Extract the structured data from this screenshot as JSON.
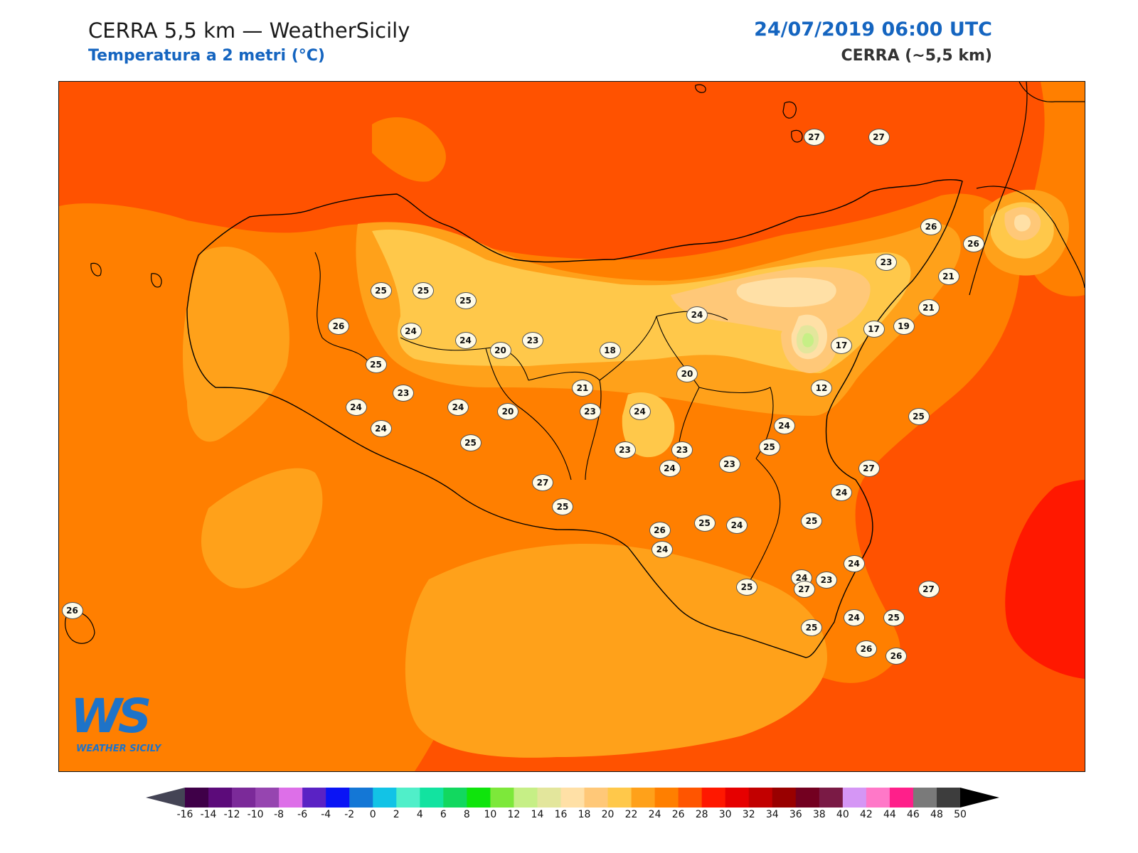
{
  "header": {
    "title": "CERRA 5,5 km — WeatherSicily",
    "subtitle": "Temperatura a 2 metri (°C)",
    "datetime": "24/07/2019 06:00 UTC",
    "model": "CERRA (~5,5 km)"
  },
  "logo": {
    "mark": "WS",
    "name": "WEATHER SICILY"
  },
  "stations": [
    {
      "value": "27",
      "lon": 14.96,
      "lat": 38.78
    },
    {
      "value": "27",
      "lon": 15.22,
      "lat": 38.78
    },
    {
      "value": "26",
      "lon": 15.43,
      "lat": 38.4
    },
    {
      "value": "26",
      "lon": 15.6,
      "lat": 38.33
    },
    {
      "value": "21",
      "lon": 15.5,
      "lat": 38.19
    },
    {
      "value": "21",
      "lon": 15.42,
      "lat": 38.06
    },
    {
      "value": "23",
      "lon": 15.25,
      "lat": 38.25
    },
    {
      "value": "19",
      "lon": 15.32,
      "lat": 37.98
    },
    {
      "value": "17",
      "lon": 15.2,
      "lat": 37.97
    },
    {
      "value": "17",
      "lon": 15.07,
      "lat": 37.9
    },
    {
      "value": "12",
      "lon": 14.99,
      "lat": 37.72
    },
    {
      "value": "25",
      "lon": 15.38,
      "lat": 37.6
    },
    {
      "value": "24",
      "lon": 14.84,
      "lat": 37.56
    },
    {
      "value": "25",
      "lon": 14.78,
      "lat": 37.47
    },
    {
      "value": "27",
      "lon": 15.18,
      "lat": 37.38
    },
    {
      "value": "24",
      "lon": 15.07,
      "lat": 37.28
    },
    {
      "value": "25",
      "lon": 14.95,
      "lat": 37.16
    },
    {
      "value": "24",
      "lon": 15.12,
      "lat": 36.98
    },
    {
      "value": "23",
      "lon": 15.01,
      "lat": 36.91
    },
    {
      "value": "24",
      "lon": 14.91,
      "lat": 36.92
    },
    {
      "value": "27",
      "lon": 15.42,
      "lat": 36.87
    },
    {
      "value": "25",
      "lon": 15.28,
      "lat": 36.75
    },
    {
      "value": "24",
      "lon": 15.12,
      "lat": 36.75
    },
    {
      "value": "25",
      "lon": 14.95,
      "lat": 36.71
    },
    {
      "value": "26",
      "lon": 15.17,
      "lat": 36.62
    },
    {
      "value": "26",
      "lon": 15.29,
      "lat": 36.59
    },
    {
      "value": "27",
      "lon": 14.92,
      "lat": 36.87
    },
    {
      "value": "25",
      "lon": 14.69,
      "lat": 36.88
    },
    {
      "value": "24",
      "lon": 14.65,
      "lat": 37.14
    },
    {
      "value": "25",
      "lon": 14.52,
      "lat": 37.15
    },
    {
      "value": "24",
      "lon": 14.35,
      "lat": 37.04
    },
    {
      "value": "26",
      "lon": 14.34,
      "lat": 37.12
    },
    {
      "value": "23",
      "lon": 14.62,
      "lat": 37.4
    },
    {
      "value": "24",
      "lon": 14.38,
      "lat": 37.38
    },
    {
      "value": "23",
      "lon": 14.2,
      "lat": 37.46
    },
    {
      "value": "27",
      "lon": 13.87,
      "lat": 37.32
    },
    {
      "value": "25",
      "lon": 13.95,
      "lat": 37.22
    },
    {
      "value": "25",
      "lon": 13.58,
      "lat": 37.49
    },
    {
      "value": "24",
      "lon": 13.22,
      "lat": 37.55
    },
    {
      "value": "24",
      "lon": 13.12,
      "lat": 37.64
    },
    {
      "value": "23",
      "lon": 13.31,
      "lat": 37.7
    },
    {
      "value": "25",
      "lon": 13.2,
      "lat": 37.82
    },
    {
      "value": "24",
      "lon": 13.53,
      "lat": 37.64
    },
    {
      "value": "20",
      "lon": 13.73,
      "lat": 37.62
    },
    {
      "value": "20",
      "lon": 13.7,
      "lat": 37.88
    },
    {
      "value": "24",
      "lon": 13.56,
      "lat": 37.92
    },
    {
      "value": "24",
      "lon": 13.34,
      "lat": 37.96
    },
    {
      "value": "25",
      "lon": 13.22,
      "lat": 38.13
    },
    {
      "value": "25",
      "lon": 13.39,
      "lat": 38.13
    },
    {
      "value": "25",
      "lon": 13.56,
      "lat": 38.09
    },
    {
      "value": "26",
      "lon": 13.05,
      "lat": 37.98
    },
    {
      "value": "23",
      "lon": 13.83,
      "lat": 37.92
    },
    {
      "value": "21",
      "lon": 14.03,
      "lat": 37.72
    },
    {
      "value": "18",
      "lon": 14.14,
      "lat": 37.88
    },
    {
      "value": "23",
      "lon": 14.06,
      "lat": 37.62
    },
    {
      "value": "24",
      "lon": 14.26,
      "lat": 37.62
    },
    {
      "value": "24",
      "lon": 14.49,
      "lat": 38.03
    },
    {
      "value": "20",
      "lon": 14.45,
      "lat": 37.78
    },
    {
      "value": "23",
      "lon": 14.43,
      "lat": 37.46
    },
    {
      "value": "26",
      "lon": 11.98,
      "lat": 36.78
    }
  ],
  "colorbar": {
    "ticks": [
      "-16",
      "-14",
      "-12",
      "-10",
      "-8",
      "-6",
      "-4",
      "-2",
      "0",
      "2",
      "4",
      "6",
      "8",
      "10",
      "12",
      "14",
      "16",
      "18",
      "20",
      "22",
      "24",
      "26",
      "28",
      "30",
      "32",
      "34",
      "36",
      "38",
      "40",
      "42",
      "44",
      "46",
      "48",
      "50"
    ],
    "colors": [
      "#3f0048",
      "#5c0b7a",
      "#7b2a99",
      "#9645b0",
      "#dd6fe8",
      "#5a22c4",
      "#0a14f5",
      "#1477d6",
      "#12c3e6",
      "#50efc9",
      "#12e3a0",
      "#12d85f",
      "#0fe40c",
      "#7de83a",
      "#c6ef86",
      "#e3e69c",
      "#ffe0a6",
      "#ffc878",
      "#ffc84a",
      "#ffa11a",
      "#ff7f00",
      "#ff5500",
      "#ff1800",
      "#e60000",
      "#c20000",
      "#990000",
      "#730020",
      "#7a1a45",
      "#d596f5",
      "#ff78c8",
      "#ff1f8a",
      "#7a7a7a",
      "#3d3d3d"
    ],
    "under_color": "#444455",
    "over_color": "#000000"
  }
}
